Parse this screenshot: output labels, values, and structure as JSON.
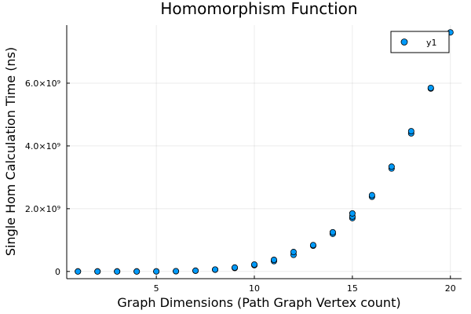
{
  "chart_data": {
    "type": "scatter",
    "title": "Homomorphism Function",
    "xlabel": "Graph Dimensions (Path Graph Vertex count)",
    "ylabel": "Single Hom Calculation Time (ns)",
    "xlim": [
      0.43,
      20.57
    ],
    "ylim": [
      -230000000.0,
      7850000000.0
    ],
    "x_ticks": [
      {
        "value": 5,
        "label": "5"
      },
      {
        "value": 10,
        "label": "10"
      },
      {
        "value": 15,
        "label": "15"
      },
      {
        "value": 20,
        "label": "20"
      }
    ],
    "y_ticks": [
      {
        "value": 0,
        "label": "0"
      },
      {
        "value": 2000000000,
        "label": "2.0×10⁹"
      },
      {
        "value": 4000000000,
        "label": "4.0×10⁹"
      },
      {
        "value": 6000000000,
        "label": "6.0×10⁹"
      }
    ],
    "grid": true,
    "legend": {
      "position": "top-right",
      "entries": [
        "y1"
      ]
    },
    "series": [
      {
        "name": "y1",
        "color": "#009af9",
        "points": [
          [
            1,
            0
          ],
          [
            1,
            0
          ],
          [
            2,
            0
          ],
          [
            2,
            0
          ],
          [
            3,
            0
          ],
          [
            3,
            0
          ],
          [
            4,
            0
          ],
          [
            4,
            0
          ],
          [
            5,
            2000000
          ],
          [
            5,
            2000000
          ],
          [
            6,
            7000000
          ],
          [
            6,
            9000000
          ],
          [
            7,
            22000000
          ],
          [
            7,
            26000000
          ],
          [
            8,
            55000000
          ],
          [
            8,
            62000000
          ],
          [
            9,
            110000000
          ],
          [
            9,
            125000000
          ],
          [
            10,
            200000000
          ],
          [
            10,
            220000000
          ],
          [
            11,
            330000000
          ],
          [
            11,
            370000000
          ],
          [
            12,
            530000000
          ],
          [
            12,
            620000000
          ],
          [
            13,
            820000000
          ],
          [
            13,
            840000000
          ],
          [
            14,
            1200000000
          ],
          [
            14,
            1250000000
          ],
          [
            15,
            1700000000
          ],
          [
            15,
            1750000000
          ],
          [
            15,
            1850000000
          ],
          [
            16,
            2380000000
          ],
          [
            16,
            2430000000
          ],
          [
            17,
            3280000000
          ],
          [
            17,
            3340000000
          ],
          [
            18,
            4400000000
          ],
          [
            18,
            4470000000
          ],
          [
            19,
            5830000000
          ],
          [
            19,
            5850000000
          ],
          [
            20,
            7620000000
          ]
        ]
      }
    ]
  }
}
